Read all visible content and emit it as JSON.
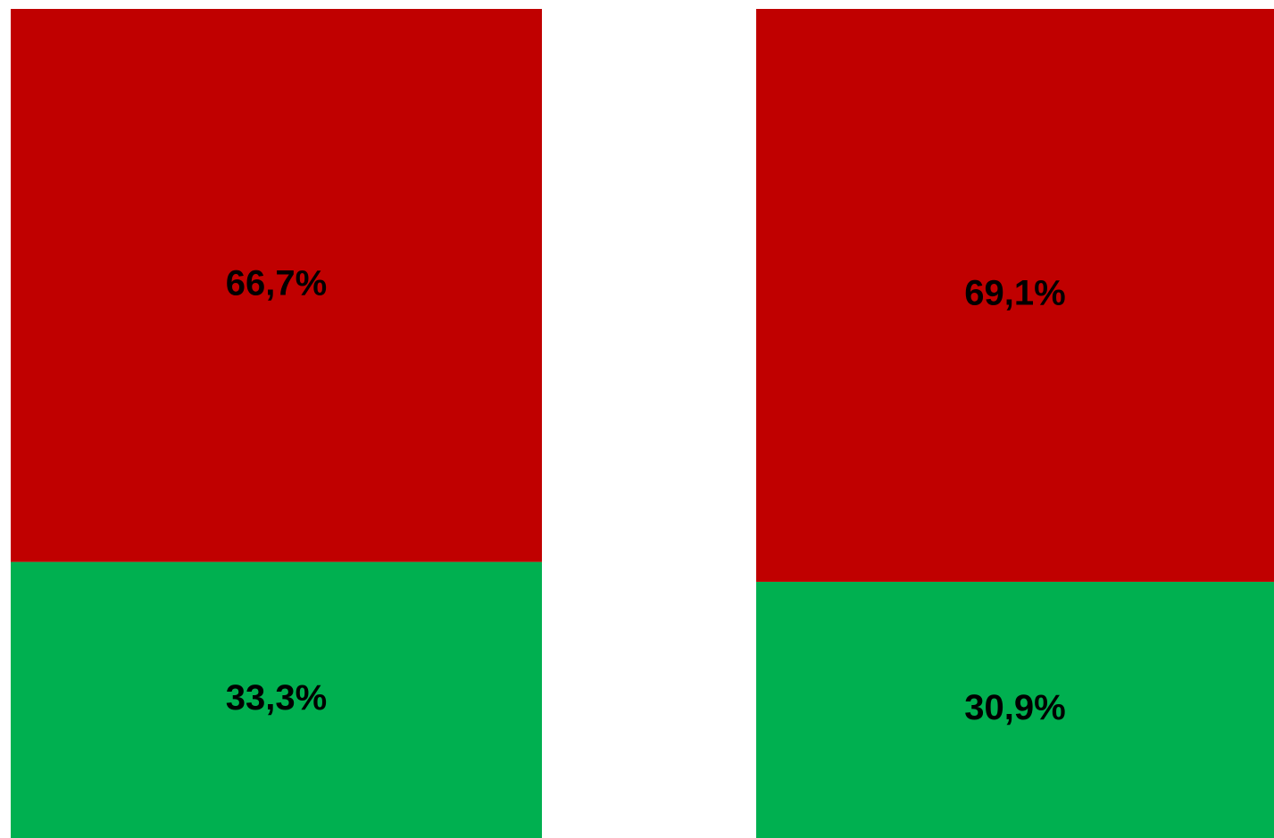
{
  "chart_data": {
    "type": "stacked_bar",
    "series": [
      {
        "name": "green",
        "color": "#00b050",
        "values": [
          33.3,
          30.9
        ],
        "value_labels": [
          "33,3%",
          "30,9%"
        ]
      },
      {
        "name": "red",
        "color": "#c00000",
        "values": [
          66.7,
          69.1
        ],
        "value_labels": [
          "66,7%",
          "69,1%"
        ]
      }
    ],
    "ylim": [
      0,
      100
    ]
  }
}
